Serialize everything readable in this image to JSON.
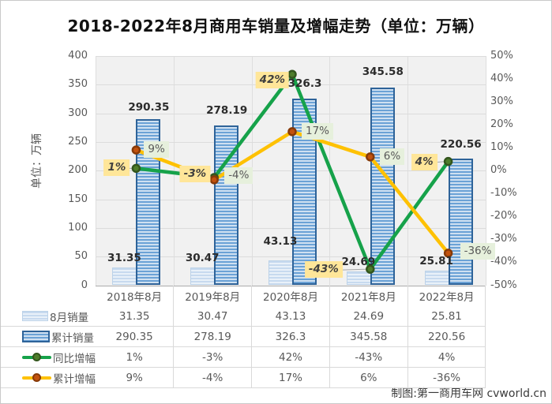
{
  "title": "2018-2022年8月商用车销量及增幅走势（单位：万辆）",
  "y_axis_title": "单位：万辆",
  "footer": "制图:第一商用车网 cvworld.cn",
  "chart_data": {
    "type": "combo-bar-line",
    "title": "2018-2022年8月商用车销量及增幅走势（单位：万辆）",
    "categories": [
      "2018年8月",
      "2019年8月",
      "2020年8月",
      "2021年8月",
      "2022年8月"
    ],
    "series": [
      {
        "name": "8月销量",
        "type": "bar",
        "style": "light",
        "axis": "left",
        "values": [
          31.35,
          30.47,
          43.13,
          24.69,
          25.81
        ],
        "values_text": [
          "31.35",
          "30.47",
          "43.13",
          "24.69",
          "25.81"
        ]
      },
      {
        "name": "累计销量",
        "type": "bar",
        "style": "dark",
        "axis": "left",
        "values": [
          290.35,
          278.19,
          326.3,
          345.58,
          220.56
        ],
        "values_text": [
          "290.35",
          "278.19",
          "326.3",
          "345.58",
          "220.56"
        ]
      },
      {
        "name": "同比增幅",
        "type": "line",
        "style": "green",
        "axis": "right",
        "values": [
          1,
          -3,
          42,
          -43,
          4
        ],
        "values_text": [
          "1%",
          "-3%",
          "42%",
          "-43%",
          "4%"
        ]
      },
      {
        "name": "累计增幅",
        "type": "line",
        "style": "orange",
        "axis": "right",
        "values": [
          9,
          -4,
          17,
          6,
          -36
        ],
        "values_text": [
          "9%",
          "-4%",
          "17%",
          "6%",
          "-36%"
        ]
      }
    ],
    "left_axis": {
      "min": 0,
      "max": 400,
      "step": 50,
      "ticks": [
        "0",
        "50",
        "100",
        "150",
        "200",
        "250",
        "300",
        "350",
        "400"
      ]
    },
    "right_axis": {
      "min": -50,
      "max": 50,
      "step": 10,
      "ticks": [
        "50%",
        "40%",
        "30%",
        "20%",
        "10%",
        "0%",
        "-10%",
        "-20%",
        "-30%",
        "-40%",
        "-50%"
      ]
    },
    "grid": true,
    "legend_position": "table-left"
  },
  "colors": {
    "bar_light_stripe": "#c7daef",
    "bar_light_bg": "#e9f1f9",
    "bar_light_border": "#bcd2e8",
    "bar_dark_stripe": "#6ba2d6",
    "bar_dark_bg": "#cfe0f1",
    "bar_dark_border": "#2e6399",
    "line_green": "#16a24a",
    "dot_green_fill": "#4e7d2b",
    "dot_green_ring": "#33551d",
    "line_orange": "#fec103",
    "dot_orange_fill": "#c2520e",
    "dot_orange_ring": "#873a08",
    "label_yellow_bg": "#ffe699",
    "label_lightgreen_bg": "#e6f0dc",
    "grid_grey": "#dcdcdc",
    "text_grey": "#595959"
  }
}
